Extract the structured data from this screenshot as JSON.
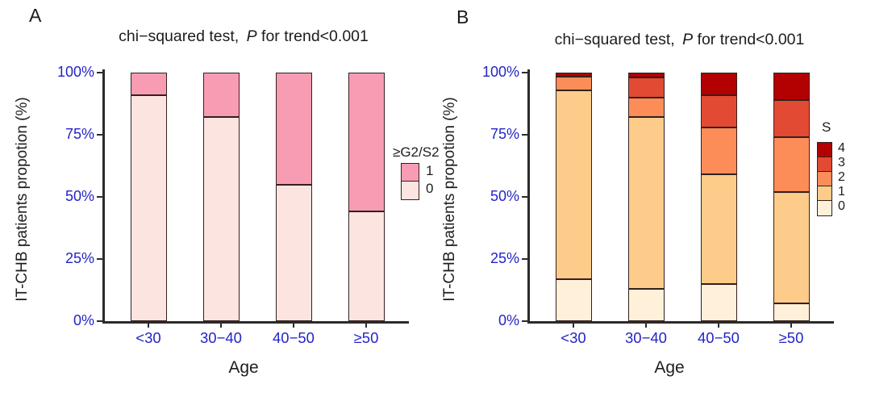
{
  "figure": {
    "background": "#ffffff",
    "accent_blue": "#2424C8",
    "text_color": "#1a1a1a",
    "bar_border_color": "#33201D"
  },
  "chart_data": [
    {
      "type": "bar",
      "stacked": true,
      "panel_label": "A",
      "title_parts": {
        "prefix": "chi−squared test, ",
        "italic_p": "P",
        "suffix": " for trend<0.001"
      },
      "title_plain": "chi−squared test, P for trend<0.001",
      "xlabel": "Age",
      "ylabel": "IT-CHB patients propotion (%)",
      "categories": [
        "<30",
        "30−40",
        "40−50",
        "≥50"
      ],
      "y_ticks": [
        0,
        25,
        50,
        75,
        100
      ],
      "y_tick_labels": [
        "0%",
        "25%",
        "50%",
        "75%",
        "100%"
      ],
      "ylim": [
        0,
        100
      ],
      "grid": false,
      "legend": {
        "title": "≥G2/S2",
        "position": "right",
        "items_top_to_bottom": [
          "1",
          "0"
        ]
      },
      "series": [
        {
          "name": "0",
          "color": "#FCE5E1",
          "values": [
            91,
            82,
            55,
            44
          ]
        },
        {
          "name": "1",
          "color": "#F89CB4",
          "values": [
            9,
            18,
            45,
            56
          ]
        }
      ]
    },
    {
      "type": "bar",
      "stacked": true,
      "panel_label": "B",
      "title_parts": {
        "prefix": "chi−squared test, ",
        "italic_p": "P",
        "suffix": " for trend<0.001"
      },
      "title_plain": "chi−squared test, P for trend<0.001",
      "xlabel": "Age",
      "ylabel": "IT-CHB patients propotion (%)",
      "categories": [
        "<30",
        "30−40",
        "40−50",
        "≥50"
      ],
      "y_ticks": [
        0,
        25,
        50,
        75,
        100
      ],
      "y_tick_labels": [
        "0%",
        "25%",
        "50%",
        "75%",
        "100%"
      ],
      "ylim": [
        0,
        100
      ],
      "grid": false,
      "legend": {
        "title": "S",
        "position": "right",
        "items_top_to_bottom": [
          "4",
          "3",
          "2",
          "1",
          "0"
        ]
      },
      "series": [
        {
          "name": "0",
          "color": "#FEF0D9",
          "values": [
            17,
            13,
            15,
            7
          ]
        },
        {
          "name": "1",
          "color": "#FDCC8A",
          "values": [
            76,
            69,
            44,
            45
          ]
        },
        {
          "name": "2",
          "color": "#FC8D59",
          "values": [
            5.5,
            8,
            19,
            22
          ]
        },
        {
          "name": "3",
          "color": "#E34A33",
          "values": [
            0,
            8,
            13,
            15
          ]
        },
        {
          "name": "4",
          "color": "#B30000",
          "values": [
            1.5,
            2,
            9,
            11
          ]
        }
      ]
    }
  ]
}
